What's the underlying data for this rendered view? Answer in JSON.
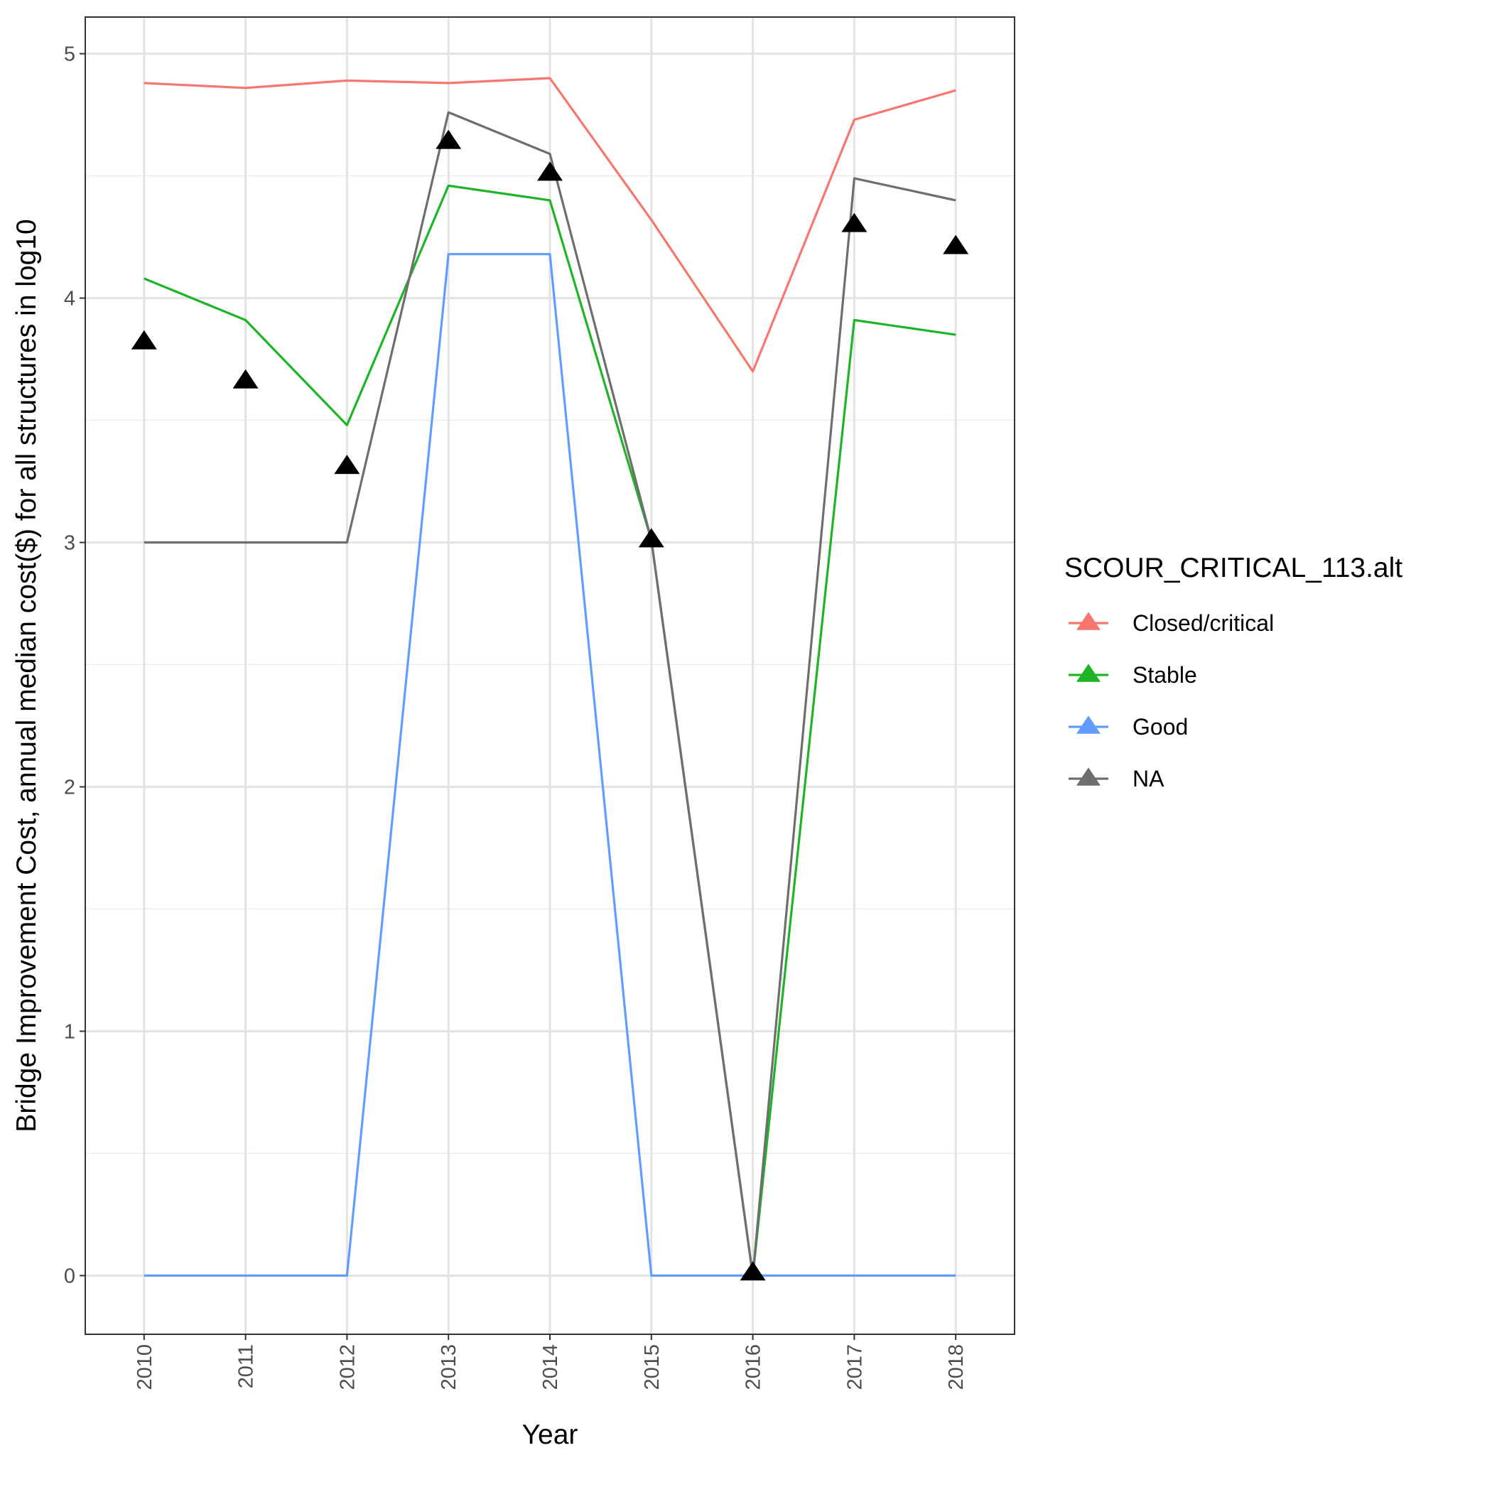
{
  "chart_data": {
    "type": "line",
    "xlabel": "Year",
    "ylabel": "Bridge Improvement Cost, annual median cost($) for all structures in log10",
    "x": [
      2010,
      2011,
      2012,
      2013,
      2014,
      2015,
      2016,
      2017,
      2018
    ],
    "x_tick_labels": [
      "2010",
      "2011",
      "2012",
      "2013",
      "2014",
      "2015",
      "2016",
      "2017",
      "2018"
    ],
    "y_ticks": [
      0,
      1,
      2,
      3,
      4,
      5
    ],
    "y_tick_labels": [
      "0",
      "1",
      "2",
      "3",
      "4",
      "5"
    ],
    "xlim": [
      2009.42,
      2018.58
    ],
    "ylim": [
      -0.24,
      5.15
    ],
    "grid": true,
    "legend": {
      "title": "SCOUR_CRITICAL_113.alt",
      "placement": "right"
    },
    "series": [
      {
        "name": "Closed/critical",
        "color": "#F8766D",
        "values": [
          4.88,
          4.86,
          4.89,
          4.88,
          4.9,
          4.32,
          3.7,
          4.73,
          4.85
        ]
      },
      {
        "name": "Stable",
        "color": "#1DB526",
        "values": [
          4.08,
          3.91,
          3.48,
          4.46,
          4.4,
          3.01,
          0.0,
          3.91,
          3.85
        ]
      },
      {
        "name": "Good",
        "color": "#619CFF",
        "values": [
          0.0,
          0.0,
          0.0,
          4.18,
          4.18,
          0.0,
          0.0,
          0.0,
          0.0
        ]
      },
      {
        "name": "NA",
        "color": "#6E6E6E",
        "values": [
          3.0,
          3.0,
          3.0,
          4.76,
          4.59,
          3.01,
          0.0,
          4.49,
          4.4
        ]
      }
    ],
    "markers": {
      "shape": "triangle",
      "color": "#000000",
      "values": [
        3.82,
        3.66,
        3.31,
        4.64,
        4.51,
        3.01,
        0.01,
        4.3,
        4.21
      ]
    }
  }
}
